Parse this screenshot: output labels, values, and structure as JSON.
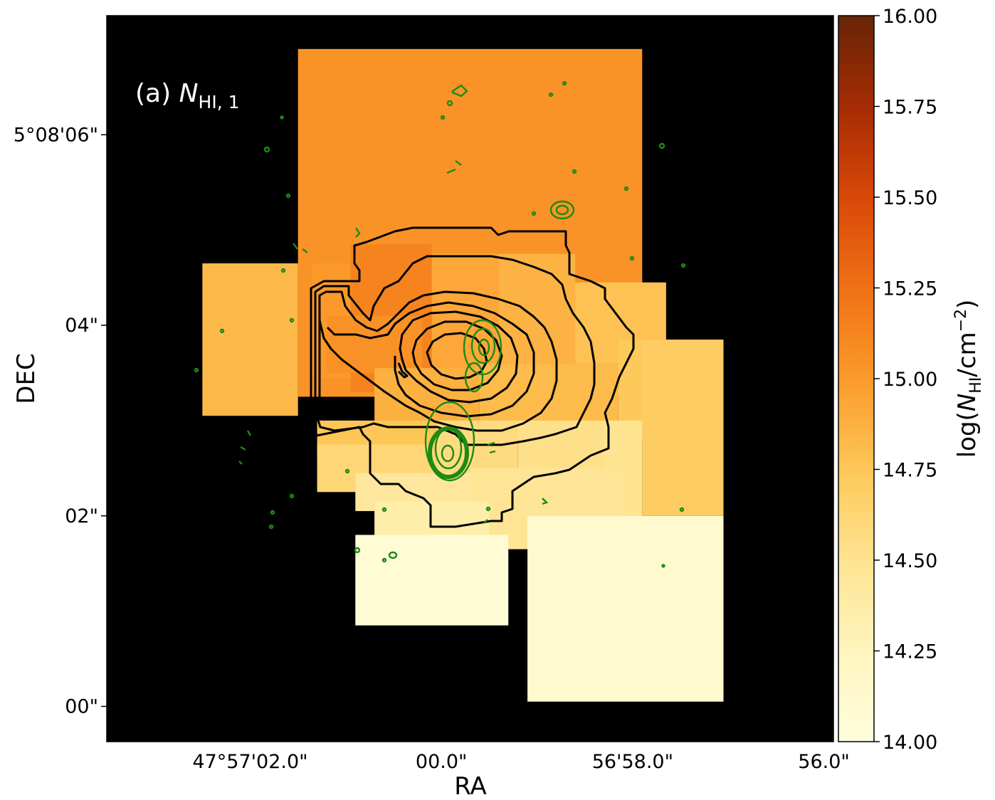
{
  "chart_data": {
    "type": "heatmap",
    "panel_label": {
      "prefix": "(a) ",
      "symbol": "N",
      "subscript": "HI, 1"
    },
    "xlabel": "RA",
    "ylabel": "DEC",
    "x_tick_labels": [
      "47°57'02.0\"",
      "00.0\"",
      "56'58.0\"",
      "56.0\""
    ],
    "y_tick_labels": [
      "5°08'06\"",
      "04\"",
      "02\"",
      "00\""
    ],
    "x_tick_values_arcsec": [
      2.0,
      0.0,
      -2.0,
      -4.0
    ],
    "y_tick_values_arcsec": [
      6.0,
      4.0,
      2.0,
      0.0
    ],
    "xlim_arcsec": [
      3.5,
      -4.1
    ],
    "ylim_arcsec": [
      -0.37,
      7.25
    ],
    "colorbar": {
      "label_prefix": "log(",
      "label_symbol": "N",
      "label_subscript": "HI",
      "label_suffix": "/cm",
      "label_power": "−2",
      "label_close": ")",
      "min": 14.0,
      "max": 16.0,
      "ticks": [
        14.0,
        14.25,
        14.5,
        14.75,
        15.0,
        15.25,
        15.5,
        15.75,
        16.0
      ],
      "tick_labels": [
        "14.00",
        "14.25",
        "14.50",
        "14.75",
        "15.00",
        "15.25",
        "15.50",
        "15.75",
        "16.00"
      ],
      "colormap": "YlOrBr-like: pale yellow (low) → orange → dark brown (high)"
    },
    "background_color": "#000000",
    "contours": {
      "black_levels": 7,
      "black_color": "#000000",
      "green_color": "#1e8a12"
    },
    "cells": [
      {
        "ra": [
          1.5,
          -2.1
        ],
        "dec": [
          3.25,
          6.9
        ],
        "value": 15.04
      },
      {
        "ra": [
          2.5,
          1.5
        ],
        "dec": [
          3.05,
          4.65
        ],
        "value": 14.83
      },
      {
        "ra": [
          1.35,
          0.95
        ],
        "dec": [
          3.45,
          4.65
        ],
        "value": 15.0
      },
      {
        "ra": [
          0.95,
          0.1
        ],
        "dec": [
          3.3,
          4.85
        ],
        "value": 15.13
      },
      {
        "ra": [
          1.2,
          0.2
        ],
        "dec": [
          3.5,
          4.1
        ],
        "value": 15.05
      },
      {
        "ra": [
          0.1,
          -0.6
        ],
        "dec": [
          3.3,
          4.75
        ],
        "value": 14.93
      },
      {
        "ra": [
          -0.6,
          -1.4
        ],
        "dec": [
          3.6,
          4.75
        ],
        "value": 14.86
      },
      {
        "ra": [
          -1.4,
          -2.35
        ],
        "dec": [
          3.6,
          4.45
        ],
        "value": 14.78
      },
      {
        "ra": [
          -0.4,
          -1.85
        ],
        "dec": [
          2.8,
          3.6
        ],
        "value": 14.82
      },
      {
        "ra": [
          0.7,
          -0.4
        ],
        "dec": [
          2.95,
          3.55
        ],
        "value": 14.88
      },
      {
        "ra": [
          1.3,
          -0.5
        ],
        "dec": [
          2.6,
          3.0
        ],
        "value": 14.75
      },
      {
        "ra": [
          -1.85,
          -2.35
        ],
        "dec": [
          2.8,
          3.85
        ],
        "value": 14.74
      },
      {
        "ra": [
          -2.1,
          -2.95
        ],
        "dec": [
          2.0,
          3.85
        ],
        "value": 14.7
      },
      {
        "ra": [
          1.3,
          0.05
        ],
        "dec": [
          2.25,
          2.75
        ],
        "value": 14.62
      },
      {
        "ra": [
          0.05,
          -0.8
        ],
        "dec": [
          2.35,
          3.0
        ],
        "value": 14.57
      },
      {
        "ra": [
          -0.8,
          -1.85
        ],
        "dec": [
          2.45,
          3.0
        ],
        "value": 14.53
      },
      {
        "ra": [
          -1.7,
          -2.1
        ],
        "dec": [
          1.65,
          3.0
        ],
        "value": 14.5
      },
      {
        "ra": [
          -0.3,
          -1.9
        ],
        "dec": [
          1.65,
          2.5
        ],
        "value": 14.47
      },
      {
        "ra": [
          0.9,
          -0.3
        ],
        "dec": [
          2.05,
          2.45
        ],
        "value": 14.44
      },
      {
        "ra": [
          0.7,
          -0.5
        ],
        "dec": [
          1.75,
          2.15
        ],
        "value": 14.36
      },
      {
        "ra": [
          0.9,
          -0.7
        ],
        "dec": [
          0.85,
          1.8
        ],
        "value": 14.05
      },
      {
        "ra": [
          -0.9,
          -2.95
        ],
        "dec": [
          0.05,
          2.0
        ],
        "value": 14.12
      }
    ]
  }
}
